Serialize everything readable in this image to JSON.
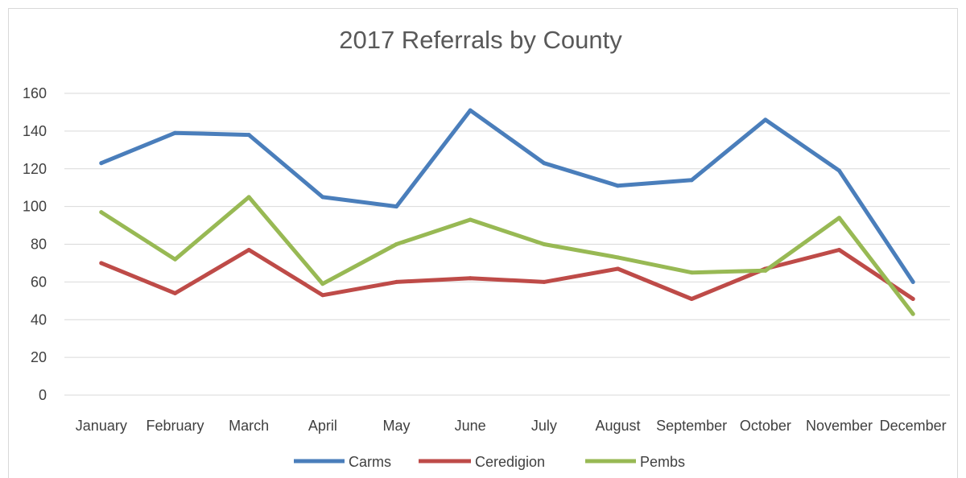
{
  "chart_data": {
    "type": "line",
    "title": "2017 Referrals by County",
    "xlabel": "",
    "ylabel": "",
    "categories": [
      "January",
      "February",
      "March",
      "April",
      "May",
      "June",
      "July",
      "August",
      "September",
      "October",
      "November",
      "December"
    ],
    "y_ticks": [
      "0",
      "20",
      "40",
      "60",
      "80",
      "100",
      "120",
      "140",
      "160"
    ],
    "ylim": [
      0,
      160
    ],
    "grid": "horizontal",
    "legend": "bottom",
    "series": [
      {
        "name": "Carms",
        "color": "#4a7ebb",
        "values": [
          123,
          139,
          138,
          105,
          100,
          151,
          123,
          111,
          114,
          146,
          119,
          60
        ]
      },
      {
        "name": "Ceredigion",
        "color": "#be4b48",
        "values": [
          70,
          54,
          77,
          53,
          60,
          62,
          60,
          67,
          51,
          67,
          77,
          51
        ]
      },
      {
        "name": "Pembs",
        "color": "#98b954",
        "values": [
          97,
          72,
          105,
          59,
          80,
          93,
          80,
          73,
          65,
          66,
          94,
          43
        ]
      }
    ]
  }
}
